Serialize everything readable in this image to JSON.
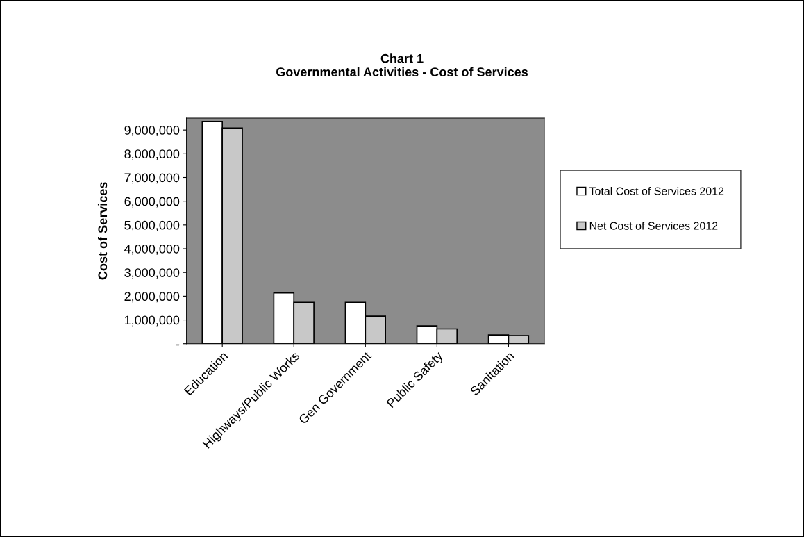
{
  "chart_data": {
    "type": "bar",
    "title": "Chart 1\nGovernmental Activities - Cost of Services",
    "ylabel": "Cost of Services",
    "categories": [
      "Education",
      "Highways/Public Works",
      "Gen Government",
      "Public Safety",
      "Sanitation"
    ],
    "series": [
      {
        "name": "Total Cost of Services 2012",
        "color": "#ffffff",
        "values": [
          9360000,
          2140000,
          1740000,
          750000,
          370000
        ]
      },
      {
        "name": "Net Cost of Services 2012",
        "color": "#c8c8c8",
        "values": [
          9080000,
          1740000,
          1160000,
          620000,
          340000
        ]
      }
    ],
    "ylim": [
      0,
      9500000
    ],
    "yticks": [
      {
        "value": 0,
        "label": "-"
      },
      {
        "value": 1000000,
        "label": "1,000,000"
      },
      {
        "value": 2000000,
        "label": "2,000,000"
      },
      {
        "value": 3000000,
        "label": "3,000,000"
      },
      {
        "value": 4000000,
        "label": "4,000,000"
      },
      {
        "value": 5000000,
        "label": "5,000,000"
      },
      {
        "value": 6000000,
        "label": "6,000,000"
      },
      {
        "value": 7000000,
        "label": "7,000,000"
      },
      {
        "value": 8000000,
        "label": "8,000,000"
      },
      {
        "value": 9000000,
        "label": "9,000,000"
      }
    ],
    "legend": "right"
  }
}
